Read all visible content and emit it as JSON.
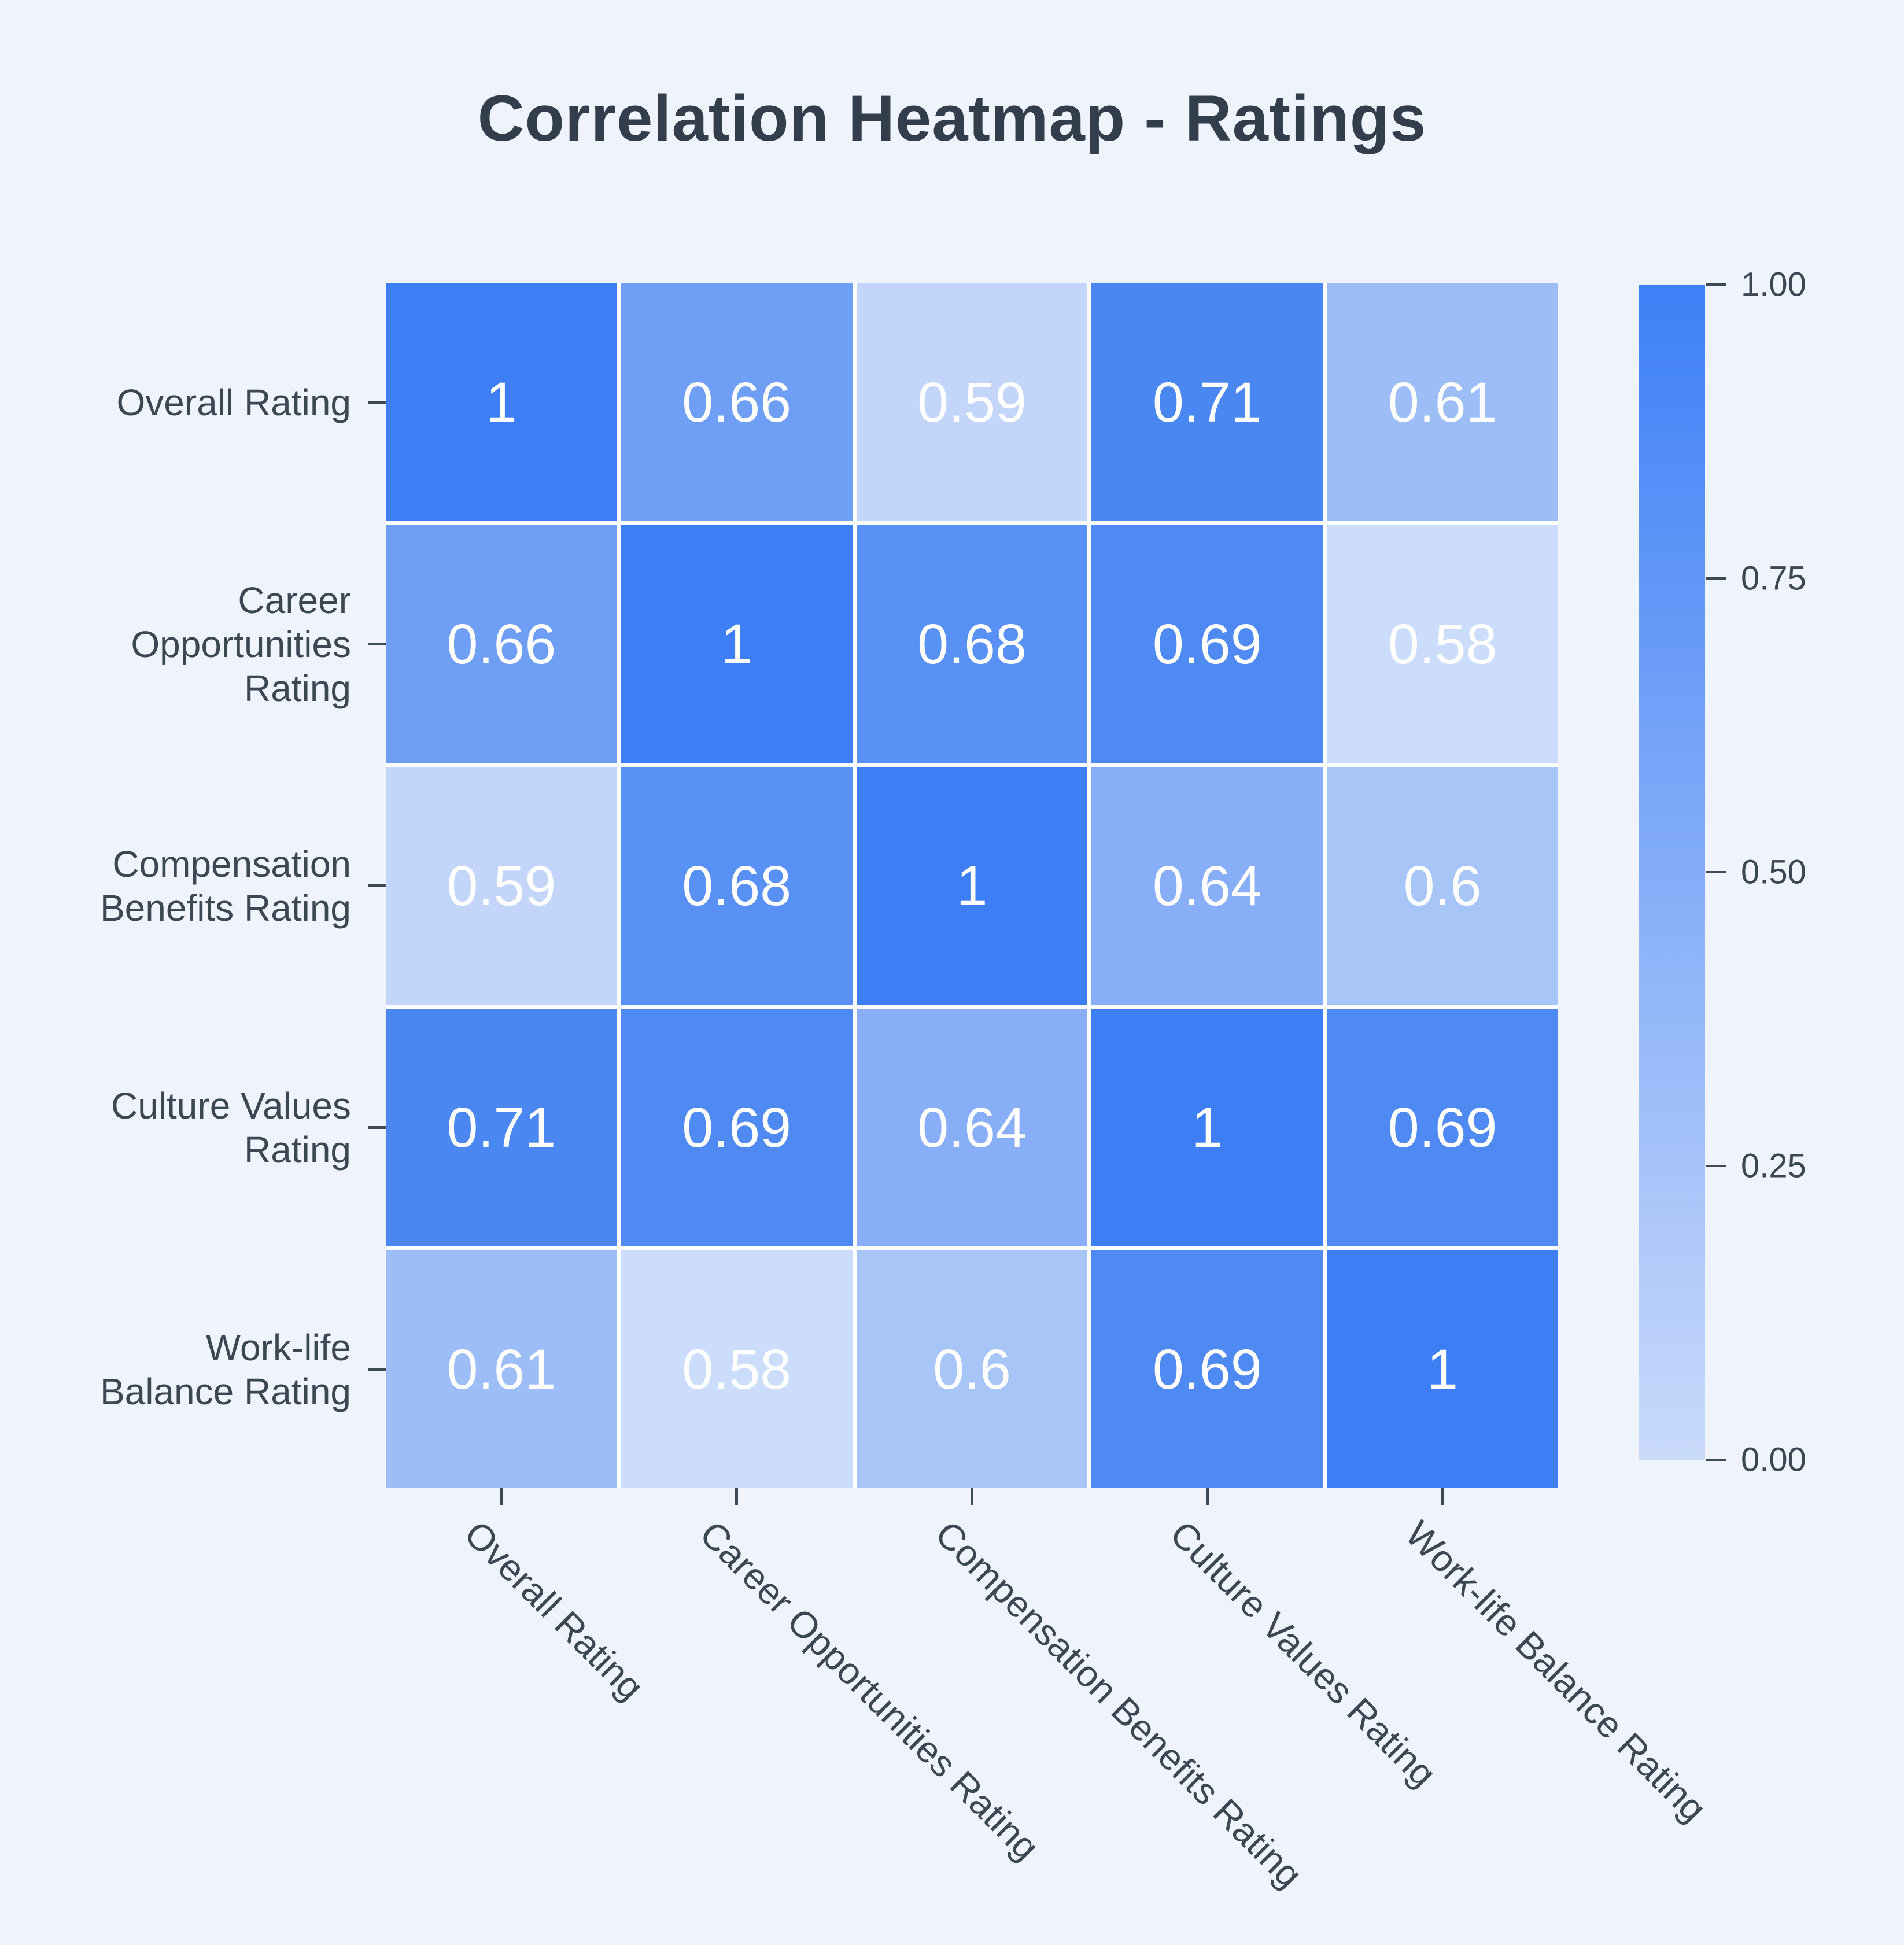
{
  "title": "Correlation Heatmap - Ratings",
  "chart_data": {
    "type": "heatmap",
    "title": "Correlation Heatmap - Ratings",
    "categories": [
      "Overall Rating",
      "Career Opportunities Rating",
      "Compensation Benefits Rating",
      "Culture Values Rating",
      "Work-life Balance Rating"
    ],
    "row_label_lines": [
      [
        "Overall Rating"
      ],
      [
        "Career",
        "Opportunities",
        "Rating"
      ],
      [
        "Compensation",
        "Benefits Rating"
      ],
      [
        "Culture Values",
        "Rating"
      ],
      [
        "Work-life",
        "Balance Rating"
      ]
    ],
    "matrix": [
      [
        1,
        0.66,
        0.59,
        0.71,
        0.61
      ],
      [
        0.66,
        1,
        0.68,
        0.69,
        0.58
      ],
      [
        0.59,
        0.68,
        1,
        0.64,
        0.6
      ],
      [
        0.71,
        0.69,
        0.64,
        1,
        0.69
      ],
      [
        0.61,
        0.58,
        0.6,
        0.69,
        1
      ]
    ],
    "cell_labels": [
      [
        "1",
        "0.66",
        "0.59",
        "0.71",
        "0.61"
      ],
      [
        "0.66",
        "1",
        "0.68",
        "0.69",
        "0.58"
      ],
      [
        "0.59",
        "0.68",
        "1",
        "0.64",
        "0.6"
      ],
      [
        "0.71",
        "0.69",
        "0.64",
        "1",
        "0.69"
      ],
      [
        "0.61",
        "0.58",
        "0.6",
        "0.69",
        "1"
      ]
    ],
    "value_colors": {
      "1": "#3d7ef5",
      "0.71": "#4a87f1",
      "0.69": "#4f8af2",
      "0.68": "#5890f3",
      "0.66": "#6f9ff4",
      "0.64": "#87aef6",
      "0.61": "#9dbdf7",
      "0.6": "#a8c5f8",
      "0.59": "#c3d6fa",
      "0.58": "#ccdcfb"
    },
    "colorbar": {
      "tick_labels": [
        "1.00",
        "0.75",
        "0.50",
        "0.25",
        "0.00"
      ],
      "tick_values": [
        1.0,
        0.75,
        0.5,
        0.25,
        0.0
      ],
      "top_color": "#3e80f7",
      "bottom_color": "#c9dafa",
      "range": [
        0.0,
        1.0
      ]
    },
    "colors": {
      "background": "#eff3fb",
      "label_text": "#3c4754",
      "title_text": "#333e4c",
      "cell_text": "#ffffff",
      "cell_gap": "#ffffff",
      "tick_mark": "#3f4a57"
    },
    "legend_position": "right",
    "grid": false
  }
}
